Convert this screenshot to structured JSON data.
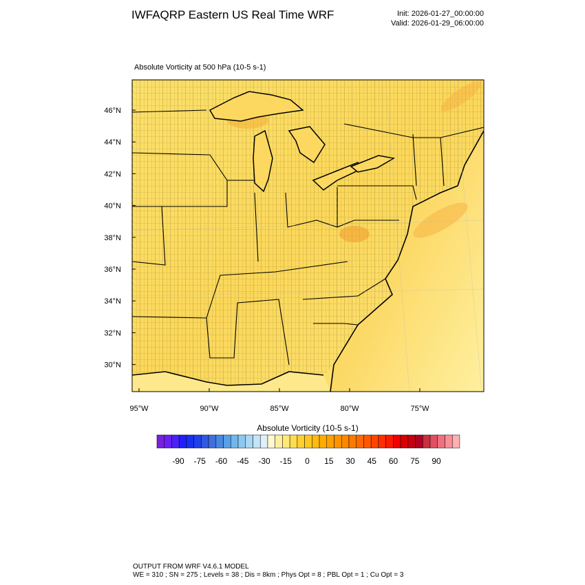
{
  "header": {
    "title": "IWFAQRP Eastern US Real Time WRF",
    "init": "Init: 2026-01-27_00:00:00",
    "valid": "Valid: 2026-01-29_06:00:00"
  },
  "map": {
    "field_title": "Absolute Vorticity at 500 hPa   (10-5 s-1)",
    "lat_labels": [
      "46°N",
      "44°N",
      "42°N",
      "40°N",
      "38°N",
      "36°N",
      "34°N",
      "32°N",
      "30°N"
    ],
    "lon_labels": [
      "95°W",
      "90°W",
      "85°W",
      "80°W",
      "75°W"
    ]
  },
  "colorbar": {
    "title": "Absolute Vorticity  (10-5 s-1)",
    "labels": [
      -90,
      -75,
      -60,
      -45,
      -30,
      -15,
      0,
      15,
      30,
      45,
      60,
      75,
      90
    ]
  },
  "footer": {
    "line1": "OUTPUT FROM WRF V4.6.1 MODEL",
    "line2": "WE = 310 ; SN = 275 ; Levels = 38 ; Dis = 8km ; Phys Opt = 8 ; PBL Opt = 1 ; Cu Opt = 3"
  }
}
